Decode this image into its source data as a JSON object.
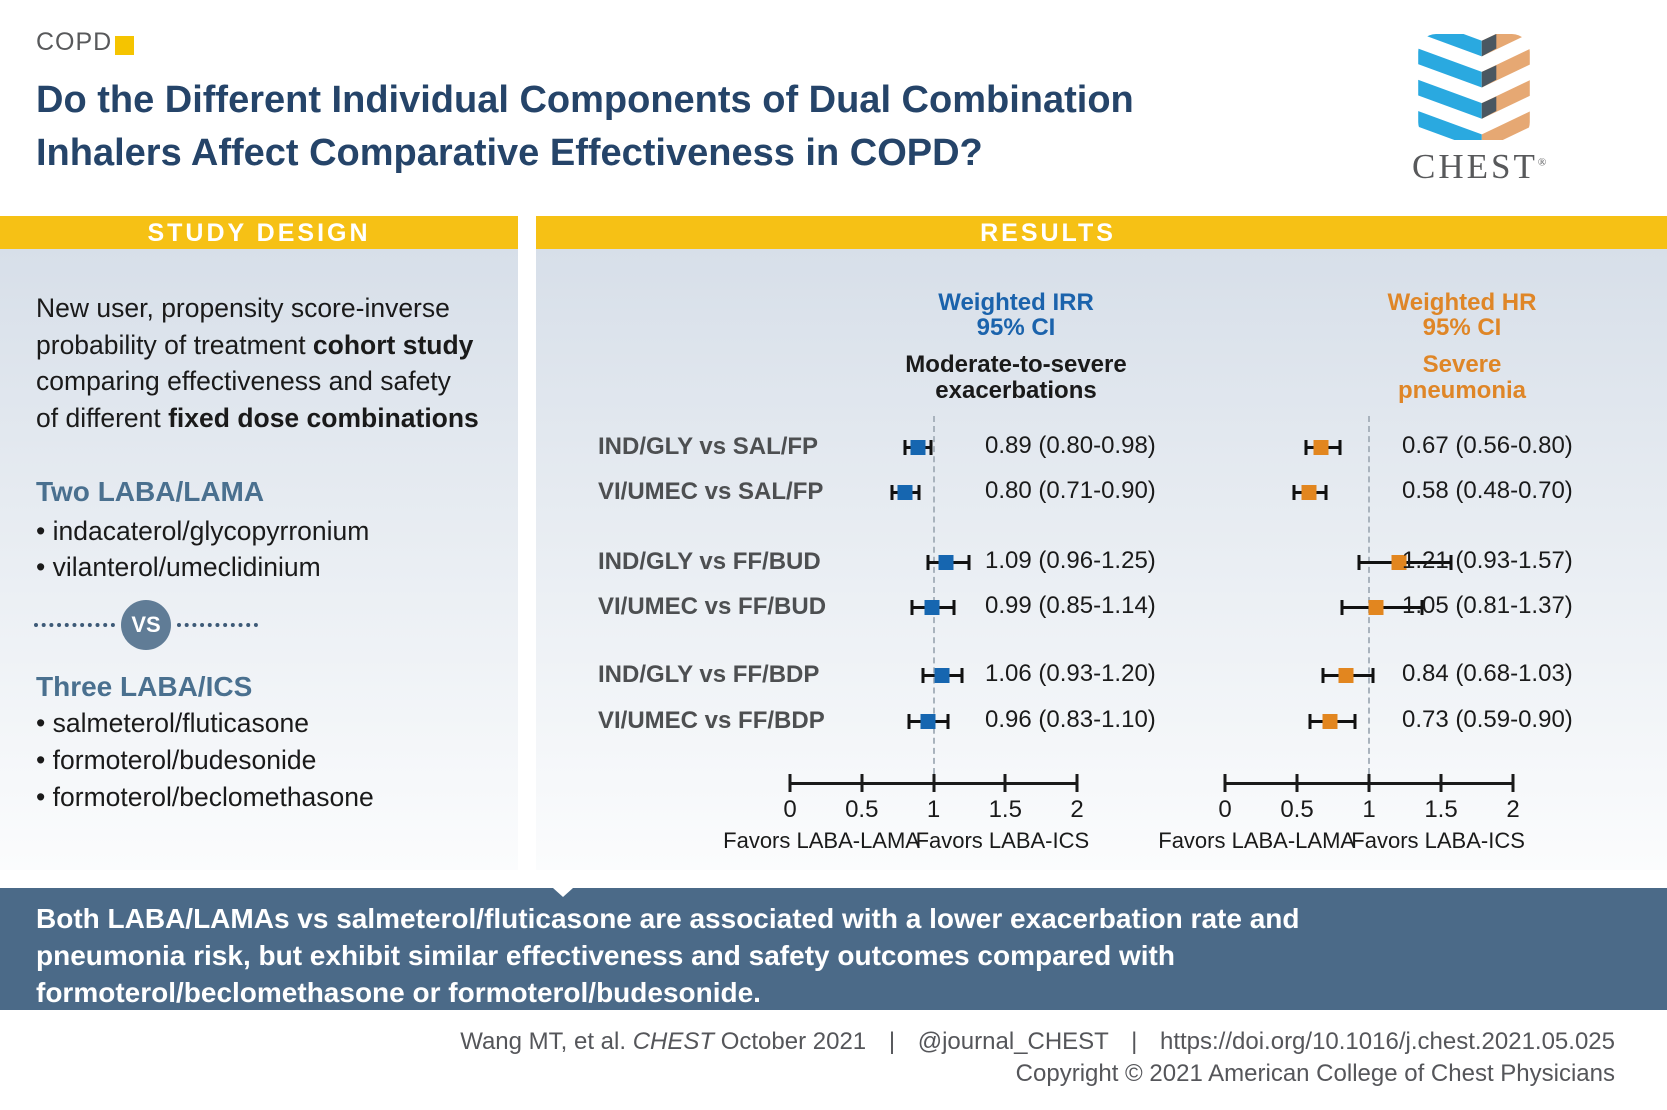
{
  "page": {
    "category_label": "COPD",
    "title_line1": "Do the Different Individual Components of Dual Combination",
    "title_line2": "Inhalers Affect Comparative Effectiveness in COPD?"
  },
  "logo": {
    "wordmark": "CHEST",
    "registered": "®"
  },
  "study_design": {
    "section_title": "STUDY DESIGN",
    "intro_line1": "New user, propensity score-inverse",
    "intro_line2_normal": "probability of treatment ",
    "intro_line2_bold": "cohort study",
    "intro_line3": "comparing effectiveness and safety",
    "intro_line4_normal": "of different ",
    "intro_line4_bold": "fixed dose combinations",
    "group1_heading": "Two LABA/LAMA",
    "group1_items": [
      "indacaterol/glycopyrronium",
      "vilanterol/umeclidinium"
    ],
    "vs_label": "VS",
    "group2_heading": "Three LABA/ICS",
    "group2_items": [
      "salmeterol/fluticasone",
      "formoterol/budesonide",
      "formoterol/beclomethasone"
    ]
  },
  "results": {
    "section_title": "RESULTS",
    "col1": {
      "header_line1": "Weighted IRR",
      "header_line2": "95% CI",
      "outcome_line1": "Moderate-to-severe",
      "outcome_line2": "exacerbations"
    },
    "col2": {
      "header_line1": "Weighted HR",
      "header_line2": "95% CI",
      "outcome_line1": "Severe",
      "outcome_line2": "pneumonia"
    }
  },
  "chart_data": [
    {
      "type": "forest",
      "measure": "Weighted IRR 95% CI",
      "outcome": "Moderate-to-severe exacerbations",
      "marker_color": "#1666B0",
      "axis": {
        "min": 0,
        "max": 2,
        "reference": 1,
        "tick_values": [
          0,
          0.5,
          1,
          1.5,
          2
        ],
        "tick_labels": [
          "0",
          "0.5",
          "1",
          "1.5",
          "2"
        ]
      },
      "favors_left": "Favors LABA-LAMA",
      "favors_right": "Favors LABA-ICS",
      "rows": [
        {
          "label": "IND/GLY vs SAL/FP",
          "estimate": 0.89,
          "ci_low": 0.8,
          "ci_high": 0.98,
          "display": "0.89 (0.80-0.98)"
        },
        {
          "label": "VI/UMEC vs SAL/FP",
          "estimate": 0.8,
          "ci_low": 0.71,
          "ci_high": 0.9,
          "display": "0.80 (0.71-0.90)"
        },
        {
          "label": "IND/GLY vs FF/BUD",
          "estimate": 1.09,
          "ci_low": 0.96,
          "ci_high": 1.25,
          "display": "1.09 (0.96-1.25)"
        },
        {
          "label": "VI/UMEC vs FF/BUD",
          "estimate": 0.99,
          "ci_low": 0.85,
          "ci_high": 1.14,
          "display": "0.99 (0.85-1.14)"
        },
        {
          "label": "IND/GLY vs FF/BDP",
          "estimate": 1.06,
          "ci_low": 0.93,
          "ci_high": 1.2,
          "display": "1.06 (0.93-1.20)"
        },
        {
          "label": "VI/UMEC vs FF/BDP",
          "estimate": 0.96,
          "ci_low": 0.83,
          "ci_high": 1.1,
          "display": "0.96 (0.83-1.10)"
        }
      ]
    },
    {
      "type": "forest",
      "measure": "Weighted HR 95% CI",
      "outcome": "Severe pneumonia",
      "marker_color": "#E2861F",
      "axis": {
        "min": 0,
        "max": 2,
        "reference": 1,
        "tick_values": [
          0,
          0.5,
          1,
          1.5,
          2
        ],
        "tick_labels": [
          "0",
          "0.5",
          "1",
          "1.5",
          "2"
        ]
      },
      "favors_left": "Favors LABA-LAMA",
      "favors_right": "Favors LABA-ICS",
      "rows": [
        {
          "label": "IND/GLY vs SAL/FP",
          "estimate": 0.67,
          "ci_low": 0.56,
          "ci_high": 0.8,
          "display": "0.67 (0.56-0.80)"
        },
        {
          "label": "VI/UMEC vs SAL/FP",
          "estimate": 0.58,
          "ci_low": 0.48,
          "ci_high": 0.7,
          "display": "0.58 (0.48-0.70)"
        },
        {
          "label": "IND/GLY vs FF/BUD",
          "estimate": 1.21,
          "ci_low": 0.93,
          "ci_high": 1.57,
          "display": "1.21 (0.93-1.57)"
        },
        {
          "label": "VI/UMEC vs FF/BUD",
          "estimate": 1.05,
          "ci_low": 0.81,
          "ci_high": 1.37,
          "display": "1.05 (0.81-1.37)"
        },
        {
          "label": "IND/GLY vs FF/BDP",
          "estimate": 0.84,
          "ci_low": 0.68,
          "ci_high": 1.03,
          "display": "0.84 (0.68-1.03)"
        },
        {
          "label": "VI/UMEC vs FF/BDP",
          "estimate": 0.73,
          "ci_low": 0.59,
          "ci_high": 0.9,
          "display": "0.73 (0.59-0.90)"
        }
      ]
    }
  ],
  "banner": {
    "line1": "Both LABA/LAMAs vs salmeterol/fluticasone are associated with a lower exacerbation rate and",
    "line2": "pneumonia risk, but exhibit similar effectiveness and safety outcomes compared with",
    "line3": "formoterol/beclomethasone or formoterol/budesonide."
  },
  "footer": {
    "citation_author": "Wang MT, et al.",
    "citation_journal": "CHEST",
    "citation_rest": "October 2021",
    "separator": "|",
    "social_handle": "@journal_CHEST",
    "doi": "https://doi.org/10.1016/j.chest.2021.05.025",
    "copyright": "Copyright © 2021 American College of Chest Physicians"
  },
  "colors": {
    "accent_yellow": "#F6C115",
    "title_navy": "#254469",
    "irr_blue": "#1B63AC",
    "hr_orange": "#DF8627",
    "slate_heading": "#4A708F",
    "banner_bg": "#4B6A88"
  }
}
